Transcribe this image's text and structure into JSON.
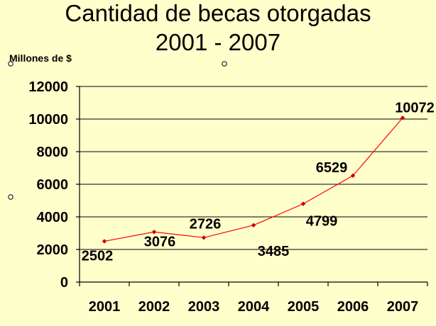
{
  "chart_data": {
    "type": "line",
    "title": "Cantidad de becas otorgadas",
    "subtitle": "2001 - 2007",
    "ylabel": "Millones de $",
    "xlabel": "",
    "categories": [
      "2001",
      "2002",
      "2003",
      "2004",
      "2005",
      "2006",
      "2007"
    ],
    "series": [
      {
        "values": [
          2502,
          3076,
          2726,
          3485,
          4799,
          6529,
          10072
        ]
      }
    ],
    "data_labels": [
      "2502",
      "3076",
      "2726",
      "3485",
      "4799",
      "6529",
      "10072"
    ],
    "ylim": [
      0,
      12000
    ],
    "yticks": [
      0,
      2000,
      4000,
      6000,
      8000,
      10000,
      12000
    ],
    "ytick_labels": [
      "0",
      "2000",
      "4000",
      "6000",
      "8000",
      "10000",
      "12000"
    ],
    "grid": true,
    "legend": "none",
    "colors": {
      "line": "#ff0000",
      "marker": "#cc0000",
      "background": "#ffffcc"
    }
  }
}
